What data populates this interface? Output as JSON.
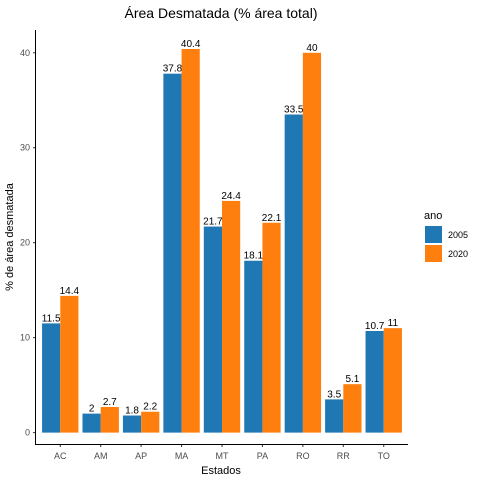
{
  "chart_data": {
    "type": "bar",
    "title": "Área Desmatada (% área total)",
    "xlabel": "Estados",
    "ylabel": "% de área desmatada",
    "categories": [
      "AC",
      "AM",
      "AP",
      "MA",
      "MT",
      "PA",
      "RO",
      "RR",
      "TO"
    ],
    "yticks": [
      0,
      10,
      20,
      30,
      40
    ],
    "ylim": [
      -1.2,
      42.4
    ],
    "grid": false,
    "legend_title": "ano",
    "legend_position": "right",
    "series": [
      {
        "name": "2005",
        "color": "#1f77b4",
        "values": [
          11.5,
          2,
          1.8,
          37.8,
          21.7,
          18.1,
          33.5,
          3.5,
          10.7
        ],
        "labels": [
          "11.5",
          "2",
          "1.8",
          "37.8",
          "21.7",
          "18.1",
          "33.5",
          "3.5",
          "10.7"
        ]
      },
      {
        "name": "2020",
        "color": "#ff7f0e",
        "values": [
          14.4,
          2.7,
          2.2,
          40.4,
          24.4,
          22.1,
          40,
          5.1,
          11
        ],
        "labels": [
          "14.4",
          "2.7",
          "2.2",
          "40.4",
          "24.4",
          "22.1",
          "40",
          "5.1",
          "11"
        ]
      }
    ]
  }
}
